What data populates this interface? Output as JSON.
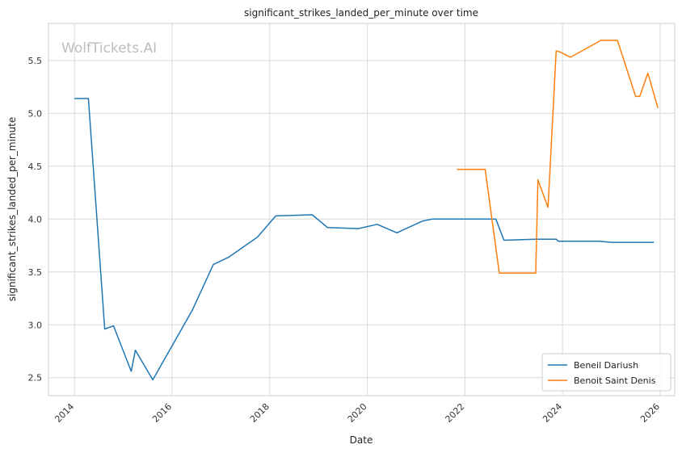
{
  "chart_data": {
    "type": "line",
    "title": "significant_strikes_landed_per_minute over time",
    "xlabel": "Date",
    "ylabel": "significant_strikes_landed_per_minute",
    "watermark": "WolfTickets.AI",
    "xlim": [
      "2013-06-20",
      "2026-04-20"
    ],
    "ylim": [
      2.33,
      5.85
    ],
    "x_ticks": [
      "2014-01-01",
      "2016-01-01",
      "2018-01-01",
      "2020-01-01",
      "2022-01-01",
      "2024-01-01",
      "2026-01-01"
    ],
    "x_tick_labels": [
      "2014",
      "2016",
      "2018",
      "2020",
      "2022",
      "2024",
      "2026"
    ],
    "y_ticks": [
      2.5,
      3.0,
      3.5,
      4.0,
      4.5,
      5.0,
      5.5
    ],
    "y_tick_labels": [
      "2.5",
      "3.0",
      "3.5",
      "4.0",
      "4.5",
      "5.0",
      "5.5"
    ],
    "grid": true,
    "legend_position": "bottom-right",
    "series": [
      {
        "name": "Beneil Dariush",
        "color": "#1f77b4",
        "points": [
          [
            "2014-01-01",
            5.14
          ],
          [
            "2014-04-15",
            5.14
          ],
          [
            "2014-08-15",
            2.96
          ],
          [
            "2014-10-20",
            2.99
          ],
          [
            "2015-03-01",
            2.56
          ],
          [
            "2015-04-01",
            2.76
          ],
          [
            "2015-08-10",
            2.48
          ],
          [
            "2016-06-01",
            3.14
          ],
          [
            "2016-11-05",
            3.57
          ],
          [
            "2017-03-01",
            3.64
          ],
          [
            "2017-10-01",
            3.83
          ],
          [
            "2018-02-15",
            4.03
          ],
          [
            "2018-11-15",
            4.04
          ],
          [
            "2019-03-10",
            3.92
          ],
          [
            "2019-10-25",
            3.91
          ],
          [
            "2020-03-15",
            3.95
          ],
          [
            "2020-08-10",
            3.87
          ],
          [
            "2021-02-15",
            3.98
          ],
          [
            "2021-05-01",
            4.0
          ],
          [
            "2022-08-20",
            4.0
          ],
          [
            "2022-10-20",
            3.8
          ],
          [
            "2023-06-15",
            3.81
          ],
          [
            "2023-11-15",
            3.81
          ],
          [
            "2023-12-01",
            3.79
          ],
          [
            "2024-10-01",
            3.79
          ],
          [
            "2025-01-01",
            3.78
          ],
          [
            "2025-11-15",
            3.78
          ]
        ]
      },
      {
        "name": "Benoit Saint Denis",
        "color": "#ff7f0e",
        "points": [
          [
            "2021-11-01",
            4.47
          ],
          [
            "2022-06-01",
            4.47
          ],
          [
            "2022-09-15",
            3.49
          ],
          [
            "2023-06-15",
            3.49
          ],
          [
            "2023-07-01",
            4.37
          ],
          [
            "2023-09-15",
            4.11
          ],
          [
            "2023-11-15",
            5.59
          ],
          [
            "2023-12-15",
            5.58
          ],
          [
            "2024-03-01",
            5.53
          ],
          [
            "2024-10-15",
            5.69
          ],
          [
            "2025-02-15",
            5.69
          ],
          [
            "2025-07-01",
            5.16
          ],
          [
            "2025-08-01",
            5.16
          ],
          [
            "2025-10-01",
            5.38
          ],
          [
            "2025-12-15",
            5.05
          ]
        ]
      }
    ]
  }
}
